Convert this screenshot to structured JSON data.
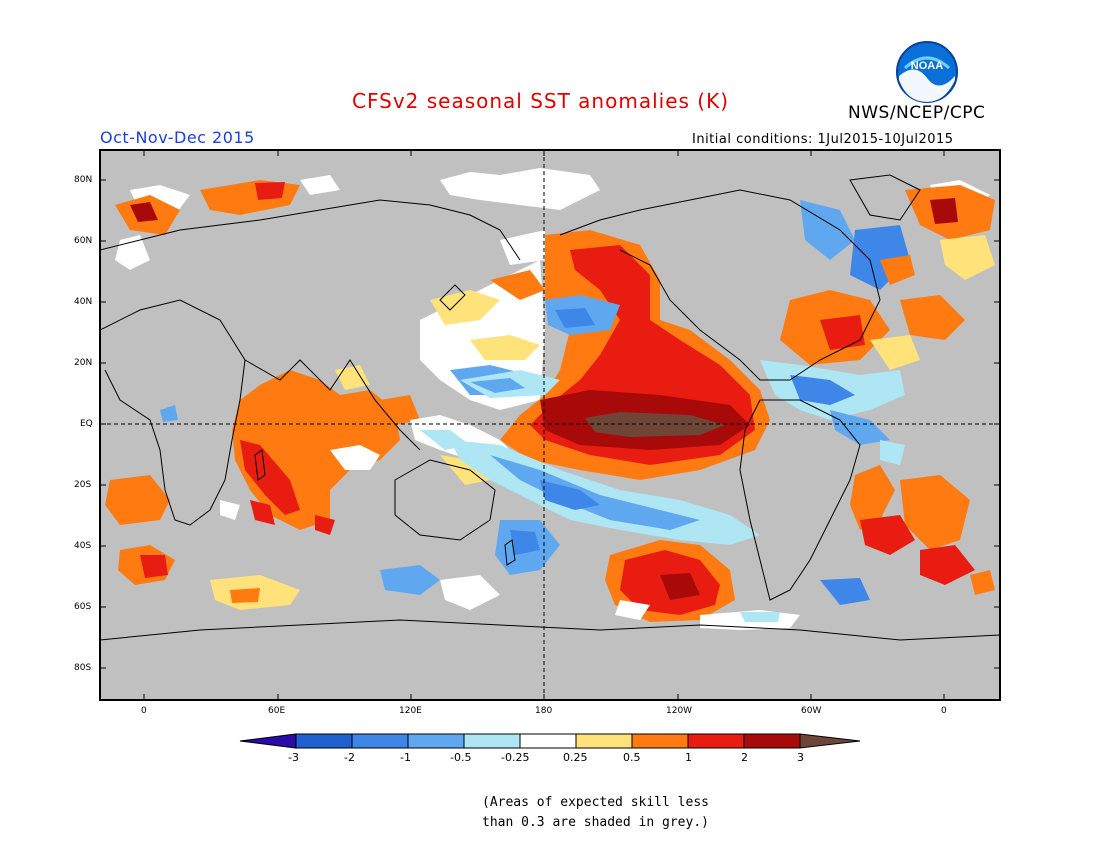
{
  "header": {
    "title": "CFSv2 seasonal SST anomalies (K)",
    "organization": "NWS/NCEP/CPC",
    "logo_text": "NOAA",
    "season": "Oct-Nov-Dec 2015",
    "initial_conditions": "Initial conditions: 1Jul2015-10Jul2015"
  },
  "map": {
    "lat_labels": [
      "80N",
      "60N",
      "40N",
      "20N",
      "EQ",
      "20S",
      "40S",
      "60S",
      "80S"
    ],
    "lon_labels": [
      "0",
      "60E",
      "120E",
      "180",
      "120W",
      "60W",
      "0"
    ],
    "land_color": "#c0c0c0",
    "ocean_color": "#ffffff"
  },
  "colorbar": {
    "labels": [
      "-3",
      "-2",
      "-1",
      "-0.5",
      "-0.25",
      "0.25",
      "0.5",
      "1",
      "2",
      "3"
    ],
    "colors": [
      "#2a0aa8",
      "#1f5fd0",
      "#3e86e8",
      "#5fa8f0",
      "#aee6f4",
      "#ffffff",
      "#ffe27a",
      "#ff7a10",
      "#e81c10",
      "#a80a0a",
      "#6e4638"
    ]
  },
  "footnote": {
    "line1": "(Areas of expected skill less",
    "line2": "than 0.3 are shaded in grey.)"
  }
}
